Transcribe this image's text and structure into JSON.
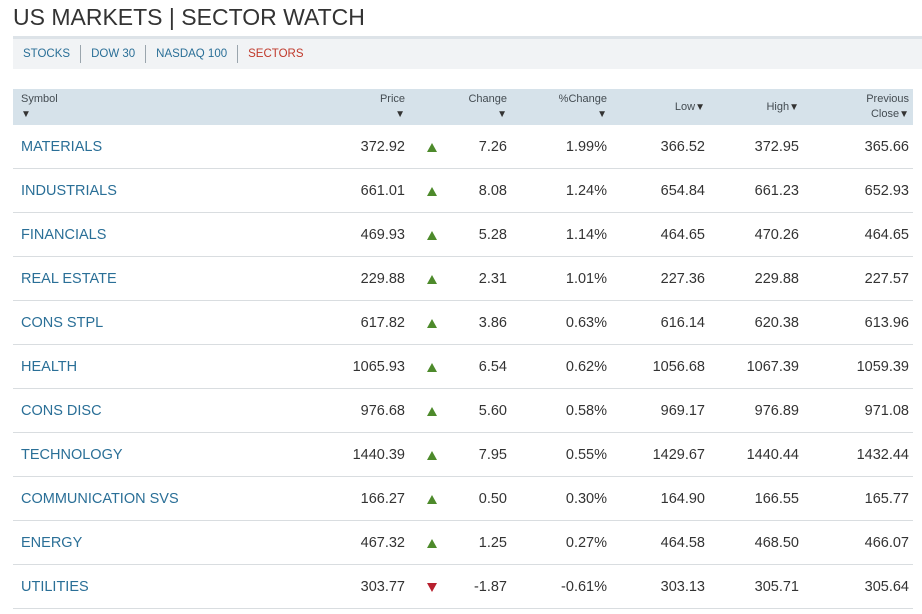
{
  "page": {
    "title": "US MARKETS | SECTOR WATCH"
  },
  "subnav": {
    "items": [
      {
        "label": "STOCKS"
      },
      {
        "label": "DOW 30"
      },
      {
        "label": "NASDAQ 100"
      },
      {
        "label": "SECTORS"
      }
    ],
    "active_color": "#c0392b",
    "link_color": "#2a6f97"
  },
  "table": {
    "headers": {
      "symbol": "Symbol",
      "price": "Price",
      "change": "Change",
      "pct_change": "%Change",
      "low": "Low",
      "high": "High",
      "prev_close_line1": "Previous",
      "prev_close_line2": "Close",
      "sort_icon": "▼"
    },
    "up_color": "#4d8a2b",
    "down_color": "#b8202e",
    "rows": [
      {
        "symbol": "MATERIALS",
        "price": "372.92",
        "dir": "up",
        "change": "7.26",
        "pct": "1.99%",
        "low": "366.52",
        "high": "372.95",
        "prev": "365.66"
      },
      {
        "symbol": "INDUSTRIALS",
        "price": "661.01",
        "dir": "up",
        "change": "8.08",
        "pct": "1.24%",
        "low": "654.84",
        "high": "661.23",
        "prev": "652.93"
      },
      {
        "symbol": "FINANCIALS",
        "price": "469.93",
        "dir": "up",
        "change": "5.28",
        "pct": "1.14%",
        "low": "464.65",
        "high": "470.26",
        "prev": "464.65"
      },
      {
        "symbol": "REAL ESTATE",
        "price": "229.88",
        "dir": "up",
        "change": "2.31",
        "pct": "1.01%",
        "low": "227.36",
        "high": "229.88",
        "prev": "227.57"
      },
      {
        "symbol": "CONS STPL",
        "price": "617.82",
        "dir": "up",
        "change": "3.86",
        "pct": "0.63%",
        "low": "616.14",
        "high": "620.38",
        "prev": "613.96"
      },
      {
        "symbol": "HEALTH",
        "price": "1065.93",
        "dir": "up",
        "change": "6.54",
        "pct": "0.62%",
        "low": "1056.68",
        "high": "1067.39",
        "prev": "1059.39"
      },
      {
        "symbol": "CONS DISC",
        "price": "976.68",
        "dir": "up",
        "change": "5.60",
        "pct": "0.58%",
        "low": "969.17",
        "high": "976.89",
        "prev": "971.08"
      },
      {
        "symbol": "TECHNOLOGY",
        "price": "1440.39",
        "dir": "up",
        "change": "7.95",
        "pct": "0.55%",
        "low": "1429.67",
        "high": "1440.44",
        "prev": "1432.44"
      },
      {
        "symbol": "COMMUNICATION SVS",
        "price": "166.27",
        "dir": "up",
        "change": "0.50",
        "pct": "0.30%",
        "low": "164.90",
        "high": "166.55",
        "prev": "165.77"
      },
      {
        "symbol": "ENERGY",
        "price": "467.32",
        "dir": "up",
        "change": "1.25",
        "pct": "0.27%",
        "low": "464.58",
        "high": "468.50",
        "prev": "466.07"
      },
      {
        "symbol": "UTILITIES",
        "price": "303.77",
        "dir": "down",
        "change": "-1.87",
        "pct": "-0.61%",
        "low": "303.13",
        "high": "305.71",
        "prev": "305.64"
      }
    ]
  }
}
